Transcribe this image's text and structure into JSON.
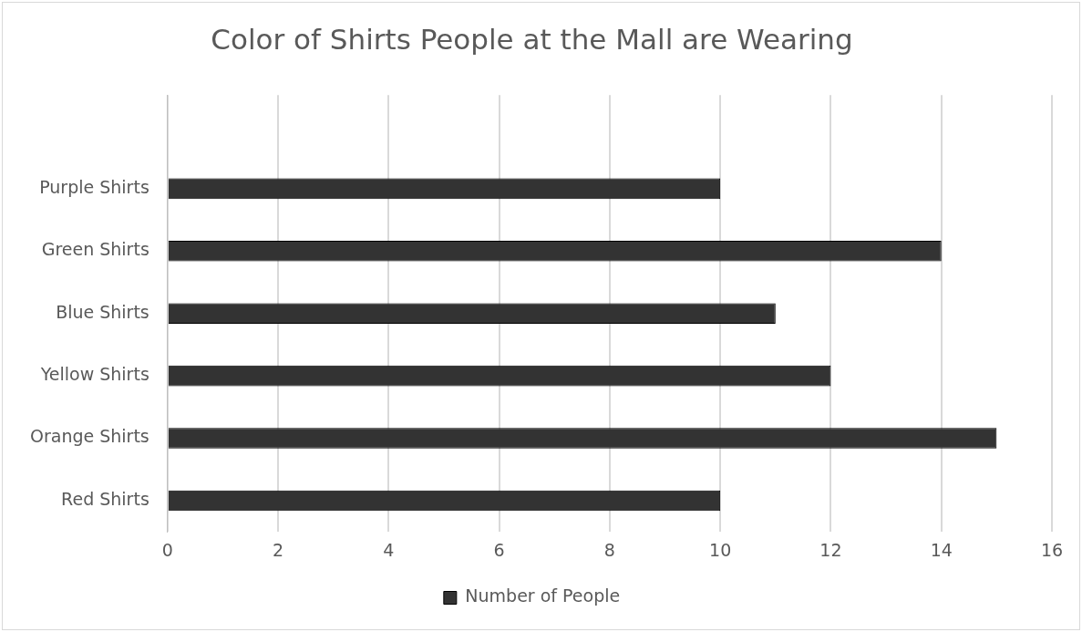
{
  "chart_data": {
    "type": "bar",
    "orientation": "horizontal",
    "title": "Color of Shirts People at the Mall are Wearing",
    "categories": [
      null,
      "Purple Shirts",
      "Green Shirts",
      "Blue Shirts",
      "Yellow Shirts",
      "Orange Shirts",
      "Red Shirts"
    ],
    "series": [
      {
        "name": "Number of People",
        "color": "#333333",
        "values": [
          null,
          10,
          14,
          11,
          12,
          15,
          10
        ]
      }
    ],
    "xlim": [
      0,
      16
    ],
    "xticks": [
      0,
      2,
      4,
      6,
      8,
      10,
      12,
      14,
      16
    ],
    "grid": "x",
    "legend": "bottom"
  }
}
